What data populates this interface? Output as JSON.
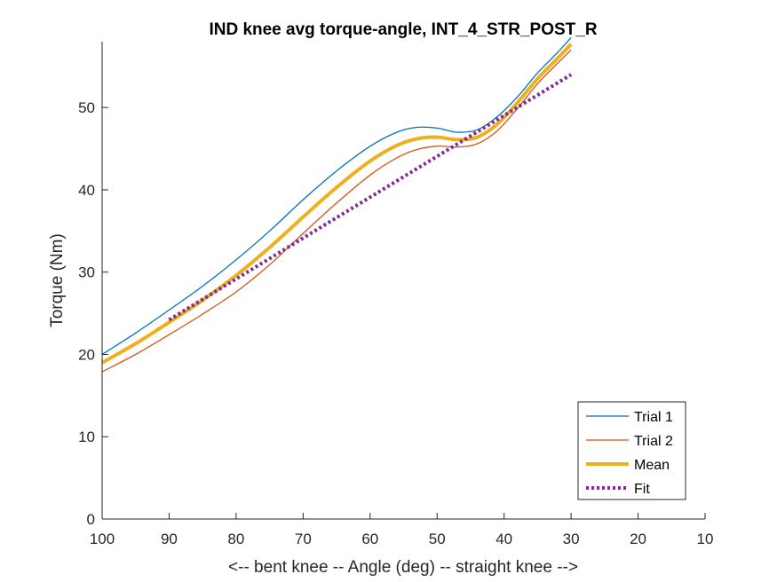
{
  "chart_data": {
    "type": "line",
    "title": "IND knee avg torque-angle, INT_4_STR_POST_R",
    "xlabel": "<-- bent knee -- Angle (deg) -- straight knee -->",
    "ylabel": "Torque (Nm)",
    "xlim": [
      100,
      10
    ],
    "ylim": [
      0,
      58
    ],
    "x_reversed": true,
    "xticks": [
      "100",
      "90",
      "80",
      "70",
      "60",
      "50",
      "40",
      "30",
      "20",
      "10"
    ],
    "yticks": [
      "0",
      "10",
      "20",
      "30",
      "40",
      "50"
    ],
    "grid": false,
    "legend_position": "bottom-right",
    "series": [
      {
        "name": "Trial 1",
        "color": "#0072BD",
        "style": "solid-thin",
        "x": [
          100,
          95,
          90,
          85,
          80,
          75,
          70,
          65,
          60,
          56,
          53,
          50,
          47,
          44,
          41,
          38,
          35,
          32,
          30
        ],
        "y": [
          20.0,
          22.6,
          25.4,
          28.3,
          31.5,
          35.0,
          38.8,
          42.3,
          45.3,
          47.0,
          47.6,
          47.5,
          47.0,
          47.3,
          48.9,
          51.3,
          54.2,
          56.7,
          58.5
        ]
      },
      {
        "name": "Trial 2",
        "color": "#D95319",
        "style": "solid-thin",
        "x": [
          100,
          95,
          90,
          85,
          80,
          75,
          70,
          65,
          60,
          56,
          53,
          50,
          47,
          44,
          41,
          38,
          35,
          32,
          30
        ],
        "y": [
          17.9,
          20.0,
          22.4,
          24.9,
          27.6,
          30.9,
          34.7,
          38.4,
          41.8,
          43.9,
          44.9,
          45.3,
          45.2,
          45.6,
          47.2,
          49.9,
          52.9,
          55.4,
          57.0
        ]
      },
      {
        "name": "Mean",
        "color": "#EDB120",
        "style": "solid-thick",
        "x": [
          100,
          95,
          90,
          85,
          80,
          75,
          70,
          65,
          60,
          56,
          53,
          50,
          47,
          44,
          41,
          38,
          35,
          32,
          30
        ],
        "y": [
          19.0,
          21.3,
          23.9,
          26.6,
          29.6,
          33.0,
          36.7,
          40.3,
          43.5,
          45.4,
          46.2,
          46.4,
          46.1,
          46.4,
          48.0,
          50.6,
          53.5,
          56.0,
          57.7
        ]
      },
      {
        "name": "Fit",
        "color": "#7E2F8E",
        "style": "dotted-thick",
        "x": [
          90,
          30
        ],
        "y": [
          24.2,
          54.0
        ]
      }
    ]
  }
}
